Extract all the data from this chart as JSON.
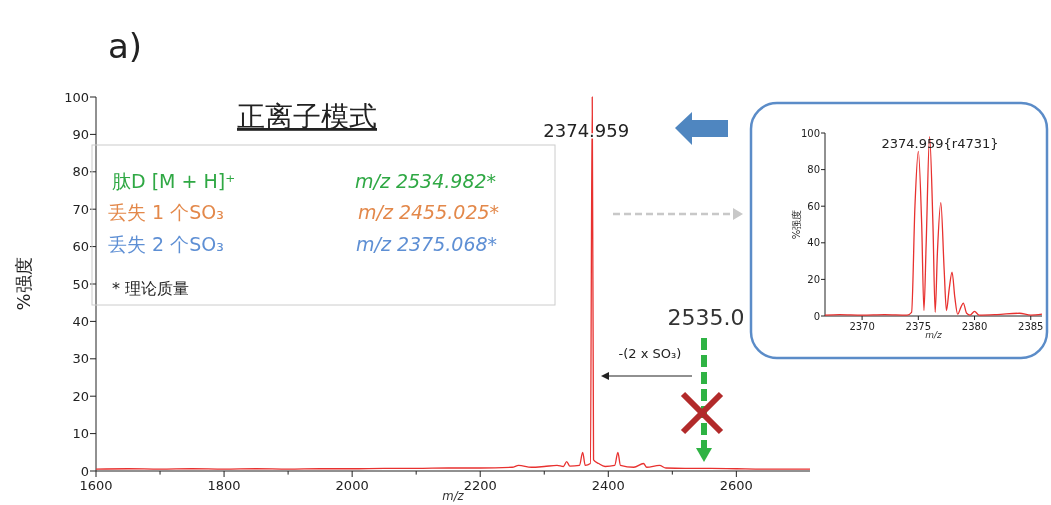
{
  "chart_data": [
    {
      "type": "line",
      "xlabel": "m/z",
      "ylabel": "%强度",
      "xlim": [
        1600,
        2715
      ],
      "ylim": [
        0,
        100
      ],
      "xticks": [
        1600,
        {
          "value": 1700,
          "label": null
        },
        1800,
        {
          "value": 1900,
          "label": null
        },
        2000,
        {
          "value": 2100,
          "label": null
        },
        2200,
        {
          "value": 2300,
          "label": null
        },
        2400,
        {
          "value": 2500,
          "label": null
        },
        2600
      ],
      "yticks": [
        0,
        10,
        20,
        30,
        40,
        50,
        60,
        70,
        80,
        90,
        100
      ],
      "x": [
        1600,
        1650,
        1700,
        1750,
        1800,
        1850,
        1900,
        1950,
        2000,
        2050,
        2100,
        2150,
        2200,
        2250,
        2260,
        2280,
        2300,
        2320,
        2330,
        2335,
        2340,
        2355,
        2360,
        2364,
        2372,
        2374.959,
        2377,
        2385,
        2395,
        2410,
        2415,
        2419,
        2440,
        2455,
        2460,
        2480,
        2490,
        2520,
        2560,
        2600,
        2650,
        2700,
        2715
      ],
      "series": [
        {
          "color": "#e8312f",
          "values": [
            0.5,
            0.6,
            0.5,
            0.6,
            0.5,
            0.6,
            0.5,
            0.6,
            0.6,
            0.7,
            0.7,
            0.8,
            0.8,
            1,
            1.5,
            1,
            1.2,
            1.5,
            1.2,
            2.5,
            1.3,
            1.5,
            5,
            1.5,
            2,
            100,
            3,
            2,
            1.2,
            1.5,
            5,
            1.5,
            1,
            2,
            1,
            1.5,
            0.8,
            0.7,
            0.7,
            0.6,
            0.5,
            0.5,
            0.5
          ]
        }
      ],
      "annotations": [
        "a)",
        "正离子模式",
        "肽D [M + H]⁺",
        "m/z 2534.982*",
        "丢失 1 个SO₃",
        "m/z 2455.025*",
        "丢失 2 个SO₃",
        "m/z 2375.068*",
        "* 理论质量",
        {
          "text": "2374.959",
          "x": 2374.959,
          "y": 100
        },
        "2535.0",
        "-(2 x SO₃)"
      ]
    },
    {
      "type": "line",
      "xlabel": "m/z",
      "ylabel": "%强度",
      "xlim": [
        2366.7,
        2386
      ],
      "ylim": [
        0,
        100
      ],
      "xticks": [
        2370,
        2375,
        2380,
        2385
      ],
      "yticks": [
        0,
        20,
        40,
        60,
        80,
        100
      ],
      "x": [
        2366.7,
        2368,
        2370,
        2372,
        2374,
        2374.4,
        2374.7,
        2375,
        2375.3,
        2375.5,
        2375.7,
        2376,
        2376.3,
        2376.5,
        2376.7,
        2377,
        2377.3,
        2377.5,
        2377.75,
        2378,
        2378.25,
        2378.5,
        2378.8,
        2379,
        2379.3,
        2379.6,
        2380,
        2380.4,
        2382,
        2384,
        2385,
        2386
      ],
      "series": [
        {
          "color": "#e8312f",
          "values": [
            0.5,
            0.8,
            0.5,
            0.8,
            0.5,
            2,
            60,
            90,
            50,
            3,
            40,
            98,
            50,
            2,
            35,
            62,
            25,
            3,
            15,
            24,
            10,
            1,
            5,
            7,
            1.5,
            0.5,
            2.5,
            0.5,
            0.8,
            1.5,
            0.5,
            1
          ]
        }
      ],
      "annotations": [
        "2374.959{r4731}"
      ]
    }
  ]
}
